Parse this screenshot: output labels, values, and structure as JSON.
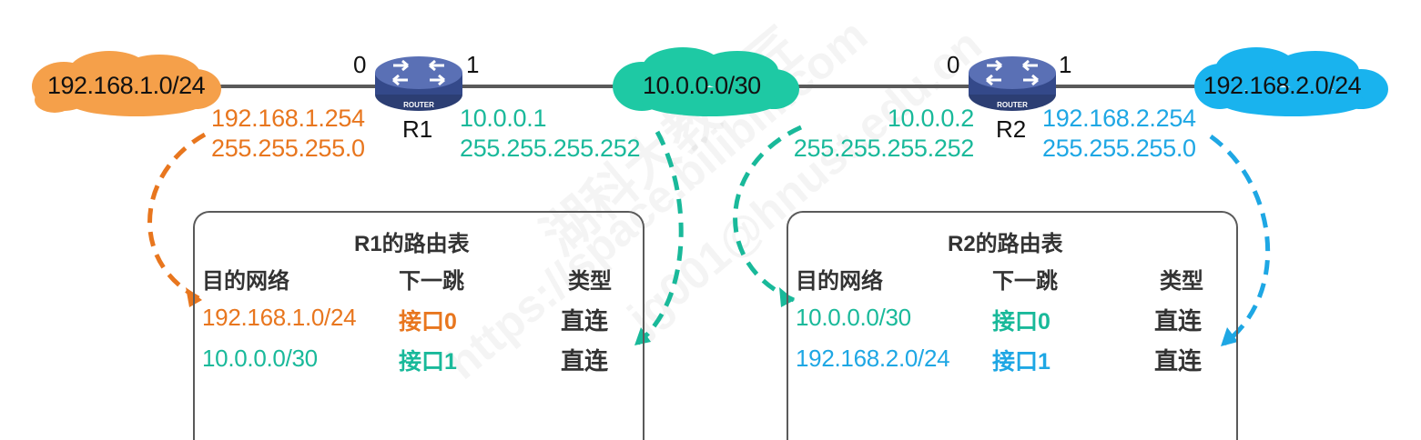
{
  "colors": {
    "orange": "#e8761e",
    "orange_cloud": "#f5a04a",
    "teal": "#19b99a",
    "teal_cloud": "#1ec9a4",
    "blue": "#1ea7e4",
    "blue_cloud": "#19b3ee",
    "router": "#3a4f8c",
    "line": "#5a5a5a"
  },
  "networks": {
    "left": "192.168.1.0/24",
    "middle": "10.0.0.0/30",
    "right": "192.168.2.0/24"
  },
  "routers": {
    "r1": {
      "name": "R1",
      "port0": "0",
      "port1": "1",
      "icon_text": "ROUTER",
      "if0_ip": "192.168.1.254",
      "if0_mask": "255.255.255.0",
      "if1_ip": "10.0.0.1",
      "if1_mask": "255.255.255.252"
    },
    "r2": {
      "name": "R2",
      "port0": "0",
      "port1": "1",
      "icon_text": "ROUTER",
      "if0_ip": "10.0.0.2",
      "if0_mask": "255.255.255.252",
      "if1_ip": "192.168.2.254",
      "if1_mask": "255.255.255.0"
    }
  },
  "tables": {
    "r1": {
      "title": "R1的路由表",
      "headers": [
        "目的网络",
        "下一跳",
        "类型"
      ],
      "rows": [
        {
          "dest": "192.168.1.0/24",
          "hop": "接口0",
          "type": "直连"
        },
        {
          "dest": "10.0.0.0/30",
          "hop": "接口1",
          "type": "直连"
        }
      ]
    },
    "r2": {
      "title": "R2的路由表",
      "headers": [
        "目的网络",
        "下一跳",
        "类型"
      ],
      "rows": [
        {
          "dest": "10.0.0.0/30",
          "hop": "接口0",
          "type": "直连"
        },
        {
          "dest": "192.168.2.0/24",
          "hop": "接口1",
          "type": "直连"
        }
      ]
    }
  },
  "watermark": {
    "line1": "湖科大教书匠",
    "line2": "https://space.bilibili.com",
    "line3": "jg001@hnust.edu.cn"
  }
}
